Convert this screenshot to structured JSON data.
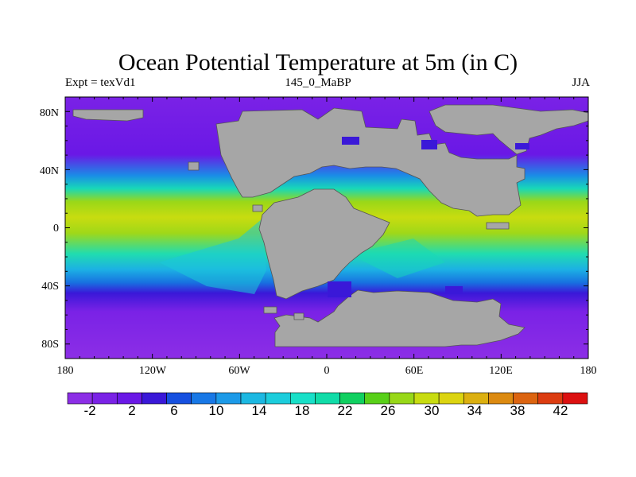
{
  "title": "Ocean Potential Temperature at 5m (in C)",
  "subtitle_left": "Expt = texVd1",
  "subtitle_center": "145_0_MaBP",
  "subtitle_right": "JJA",
  "x_ticks": [
    "180",
    "120W",
    "60W",
    "0",
    "60E",
    "120E",
    "180"
  ],
  "y_ticks": [
    "80N",
    "40N",
    "0",
    "40S",
    "80S"
  ],
  "colorbar": {
    "colors": [
      "#8c2ee6",
      "#7a22e6",
      "#6a18e6",
      "#3a18d8",
      "#1650e0",
      "#1878e6",
      "#1c9ae8",
      "#1cb8e2",
      "#1ccddc",
      "#18e0c8",
      "#10dca8",
      "#10d060",
      "#58d018",
      "#98d818",
      "#c8dc10",
      "#dcd410",
      "#dcb010",
      "#dc8a10",
      "#dc6410",
      "#dc3c10",
      "#dc1010"
    ],
    "labels": [
      "-2",
      "2",
      "6",
      "10",
      "14",
      "18",
      "22",
      "26",
      "30",
      "34",
      "38",
      "42"
    ]
  },
  "chart_data": {
    "type": "map",
    "variable": "Ocean Potential Temperature at 5m",
    "units": "C",
    "xlim": [
      -180,
      180
    ],
    "ylim": [
      -90,
      90
    ],
    "land_color": "#a6a6a6",
    "zonal_profile": {
      "lat": [
        -90,
        -70,
        -55,
        -45,
        -35,
        -20,
        -10,
        0,
        10,
        20,
        30,
        40,
        50,
        60,
        70,
        90
      ],
      "temp_c": [
        -2,
        -1,
        2,
        8,
        15,
        22,
        25,
        27,
        29,
        27,
        24,
        18,
        9,
        4,
        0,
        -2
      ]
    }
  }
}
